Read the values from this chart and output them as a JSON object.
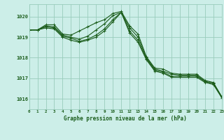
{
  "bg_color": "#cceee8",
  "grid_color": "#99ccbb",
  "line_color": "#1a5c1a",
  "title": "Graphe pression niveau de la mer (hPa)",
  "title_color": "#1a5c1a",
  "xlim": [
    0,
    23
  ],
  "ylim": [
    1015.5,
    1020.6
  ],
  "yticks": [
    1016,
    1017,
    1018,
    1019,
    1020
  ],
  "xticks": [
    0,
    1,
    2,
    3,
    4,
    5,
    6,
    7,
    8,
    9,
    10,
    11,
    12,
    13,
    14,
    15,
    16,
    17,
    18,
    19,
    20,
    21,
    22,
    23
  ],
  "series": [
    [
      1019.35,
      1019.35,
      1019.6,
      1019.6,
      1019.15,
      1019.1,
      1019.3,
      1019.5,
      1019.7,
      1019.85,
      1020.15,
      1020.25,
      1019.55,
      1019.15,
      1018.05,
      1017.5,
      1017.45,
      1017.25,
      1017.2,
      1017.2,
      1017.2,
      1016.9,
      1016.8,
      1016.1
    ],
    [
      1019.35,
      1019.35,
      1019.55,
      1019.5,
      1019.1,
      1019.0,
      1018.9,
      1019.05,
      1019.35,
      1019.65,
      1020.05,
      1020.2,
      1019.45,
      1019.0,
      1018.0,
      1017.45,
      1017.35,
      1017.2,
      1017.15,
      1017.15,
      1017.15,
      1016.85,
      1016.75,
      1016.1
    ],
    [
      1019.35,
      1019.35,
      1019.5,
      1019.45,
      1019.05,
      1018.95,
      1018.8,
      1018.9,
      1019.1,
      1019.4,
      1019.85,
      1020.2,
      1019.3,
      1018.85,
      1017.95,
      1017.4,
      1017.3,
      1017.1,
      1017.1,
      1017.1,
      1017.1,
      1016.85,
      1016.75,
      1016.1
    ],
    [
      1019.35,
      1019.35,
      1019.45,
      1019.4,
      1019.0,
      1018.85,
      1018.75,
      1018.85,
      1019.0,
      1019.3,
      1019.75,
      1020.2,
      1019.2,
      1018.75,
      1017.9,
      1017.35,
      1017.25,
      1017.05,
      1017.05,
      1017.05,
      1017.05,
      1016.8,
      1016.7,
      1016.05
    ]
  ]
}
